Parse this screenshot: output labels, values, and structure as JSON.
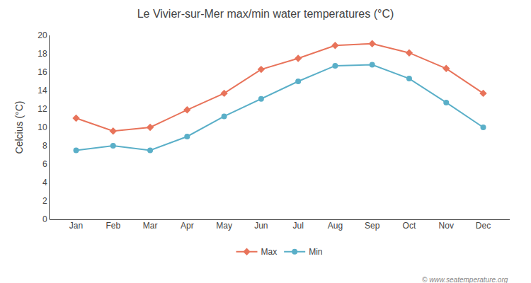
{
  "chart_data": {
    "type": "line",
    "title": "Le Vivier-sur-Mer max/min water temperatures (°C)",
    "ylabel": "Celcius (°C)",
    "categories": [
      "Jan",
      "Feb",
      "Mar",
      "Apr",
      "May",
      "Jun",
      "Jul",
      "Aug",
      "Sep",
      "Oct",
      "Nov",
      "Dec"
    ],
    "series": [
      {
        "name": "Max",
        "color": "#e8735a",
        "marker": "diamond",
        "values": [
          11.0,
          9.6,
          10.0,
          11.9,
          13.7,
          16.3,
          17.5,
          18.9,
          19.1,
          18.1,
          16.4,
          13.7
        ]
      },
      {
        "name": "Min",
        "color": "#5aafc8",
        "marker": "circle",
        "values": [
          7.5,
          8.0,
          7.5,
          9.0,
          11.2,
          13.1,
          15.0,
          16.7,
          16.8,
          15.3,
          12.7,
          10.0
        ]
      }
    ],
    "ylim": [
      0,
      20
    ],
    "yticks": [
      0,
      2,
      4,
      6,
      8,
      10,
      12,
      14,
      16,
      18,
      20
    ],
    "grid": false,
    "legend": "bottom",
    "annotations": [
      "© www.seatemperature.org"
    ]
  }
}
